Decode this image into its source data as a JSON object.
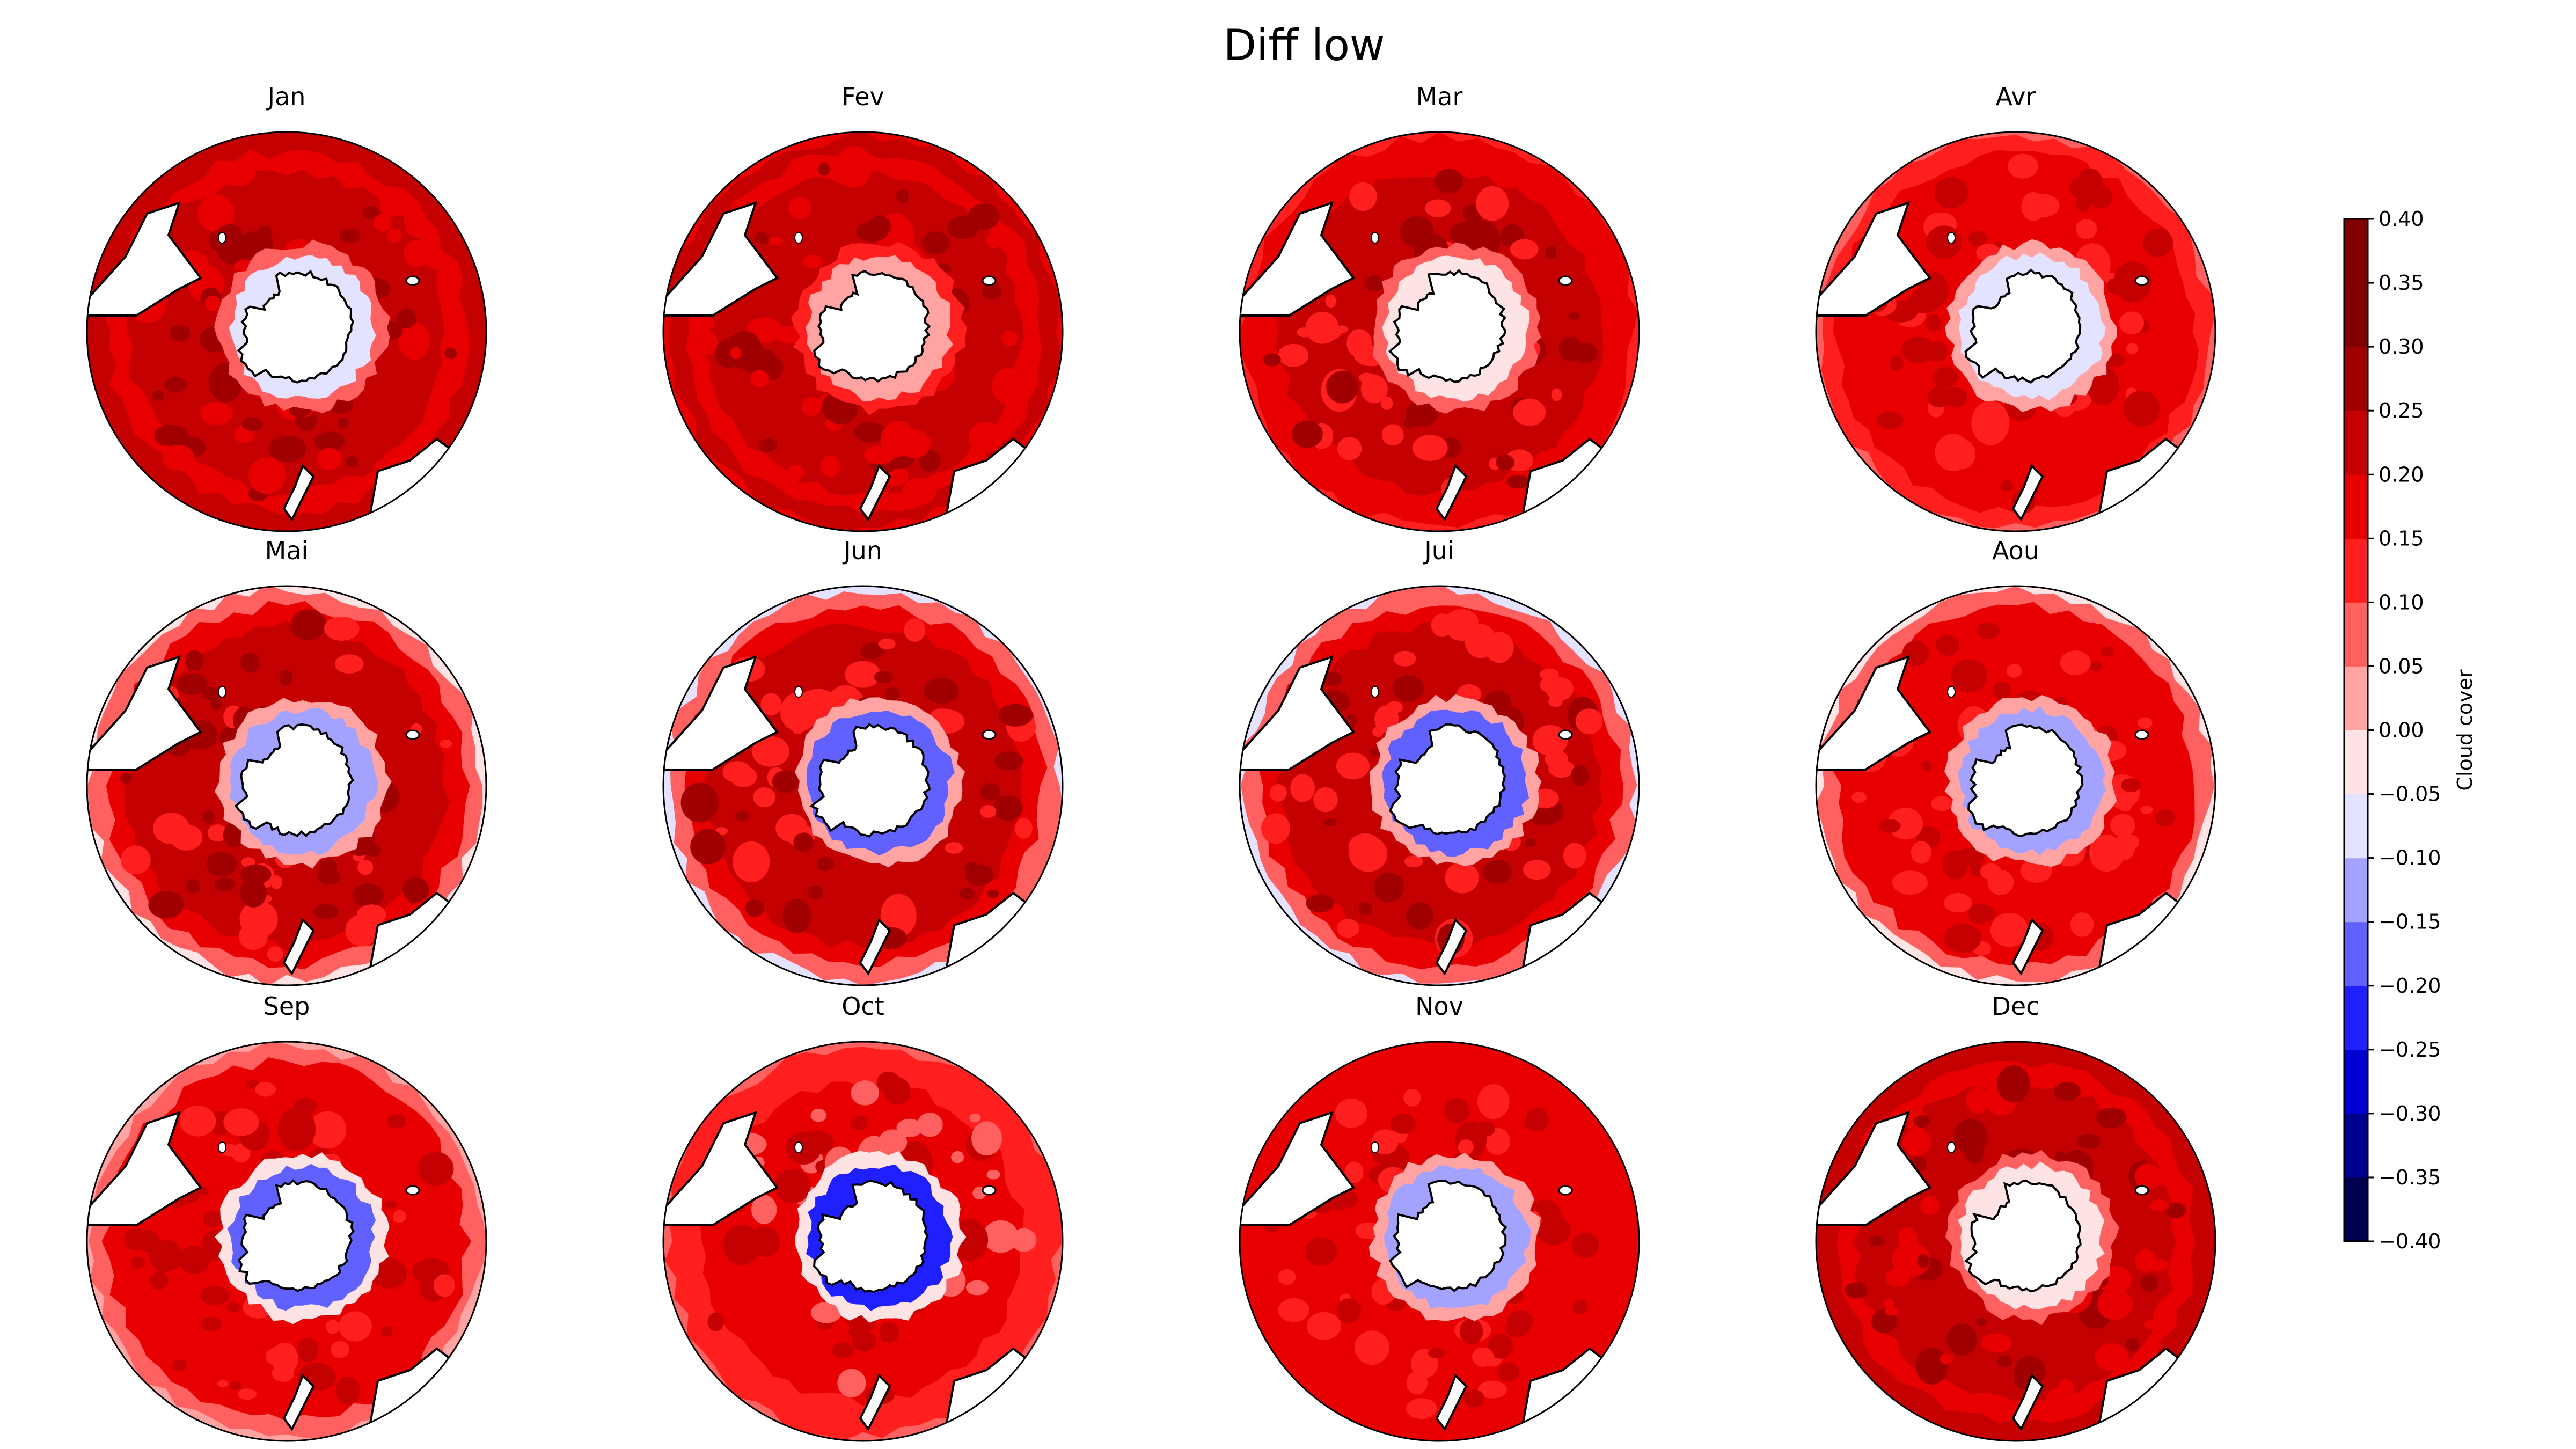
{
  "figure": {
    "title": "Diff low"
  },
  "panels": [
    {
      "month": "Jan",
      "ring_level": 0.22,
      "inner_level": -0.06,
      "outer_level": 0.2
    },
    {
      "month": "Fev",
      "ring_level": 0.22,
      "inner_level": 0.0,
      "outer_level": 0.18
    },
    {
      "month": "Mar",
      "ring_level": 0.2,
      "inner_level": -0.02,
      "outer_level": 0.12
    },
    {
      "month": "Avr",
      "ring_level": 0.18,
      "inner_level": -0.1,
      "outer_level": 0.06
    },
    {
      "month": "Mai",
      "ring_level": 0.2,
      "inner_level": -0.15,
      "outer_level": -0.02
    },
    {
      "month": "Jun",
      "ring_level": 0.2,
      "inner_level": -0.18,
      "outer_level": -0.1
    },
    {
      "month": "Jui",
      "ring_level": 0.2,
      "inner_level": -0.18,
      "outer_level": -0.08
    },
    {
      "month": "Aou",
      "ring_level": 0.18,
      "inner_level": -0.15,
      "outer_level": -0.05
    },
    {
      "month": "Sep",
      "ring_level": 0.18,
      "inner_level": -0.2,
      "outer_level": 0.02
    },
    {
      "month": "Oct",
      "ring_level": 0.15,
      "inner_level": -0.22,
      "outer_level": 0.08
    },
    {
      "month": "Nov",
      "ring_level": 0.18,
      "inner_level": -0.15,
      "outer_level": 0.16
    },
    {
      "month": "Dec",
      "ring_level": 0.22,
      "inner_level": -0.05,
      "outer_level": 0.24
    }
  ],
  "colorbar": {
    "label": "Cloud cover",
    "levels": [
      -0.4,
      -0.35,
      -0.3,
      -0.25,
      -0.2,
      -0.15,
      -0.1,
      -0.05,
      0.0,
      0.05,
      0.1,
      0.15,
      0.2,
      0.25,
      0.3,
      0.35,
      0.4
    ],
    "tick_labels": [
      "−0.40",
      "−0.35",
      "−0.30",
      "−0.25",
      "−0.20",
      "−0.15",
      "−0.10",
      "−0.05",
      "0.00",
      "0.05",
      "0.10",
      "0.15",
      "0.20",
      "0.25",
      "0.30",
      "0.35",
      "0.40"
    ],
    "colors": [
      "#00004c",
      "#00008e",
      "#0000d3",
      "#1f1fff",
      "#6161ff",
      "#a3a3ff",
      "#e3e3ff",
      "#fde3e3",
      "#ffa3a3",
      "#ff6161",
      "#ff1f1f",
      "#e80000",
      "#c40000",
      "#a10000",
      "#830000",
      "#800000"
    ]
  }
}
